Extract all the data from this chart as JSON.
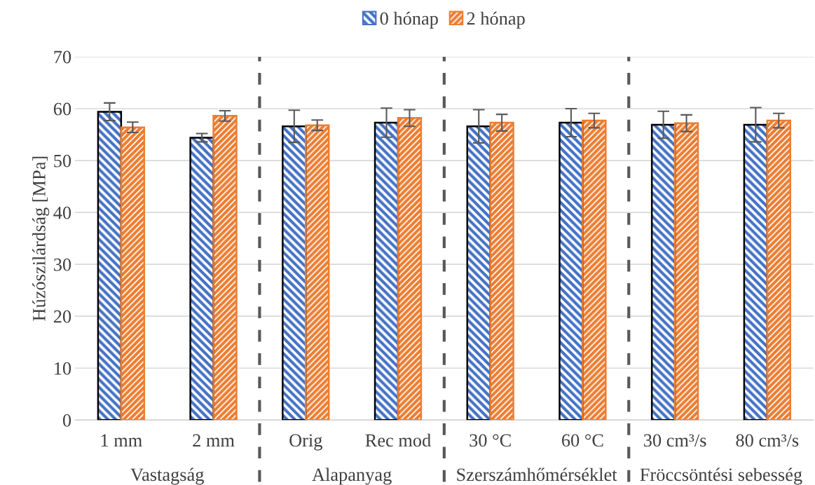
{
  "chart_data": {
    "type": "bar",
    "ylabel": "Húzószilárdság [MPa]",
    "categories": [
      "1 mm",
      "2 mm",
      "Orig",
      "Rec mod",
      "30 °C",
      "60 °C",
      "30 cm³/s",
      "80 cm³/s"
    ],
    "series": [
      {
        "name": "0 hónap",
        "color": "#4472c4",
        "values": [
          59.4,
          54.4,
          56.6,
          57.3,
          56.6,
          57.3,
          56.9,
          56.9
        ],
        "errors": [
          1.7,
          0.8,
          3.1,
          2.8,
          3.2,
          2.7,
          2.6,
          3.3
        ]
      },
      {
        "name": "2 hónap",
        "color": "#ed7d31",
        "values": [
          56.4,
          58.6,
          56.8,
          58.2,
          57.3,
          57.7,
          57.2,
          57.7
        ],
        "errors": [
          1.0,
          1.0,
          1.0,
          1.6,
          1.6,
          1.4,
          1.6,
          1.4
        ]
      }
    ],
    "ylim": [
      0,
      70
    ],
    "yticks": [
      0,
      10,
      20,
      30,
      40,
      50,
      60,
      70
    ],
    "grid": "y",
    "legend": "top",
    "annotations": [
      "Vastagság",
      "Alapanyag",
      "Szerszámhőmérséklet",
      "Fröccsöntési sebesség"
    ]
  }
}
